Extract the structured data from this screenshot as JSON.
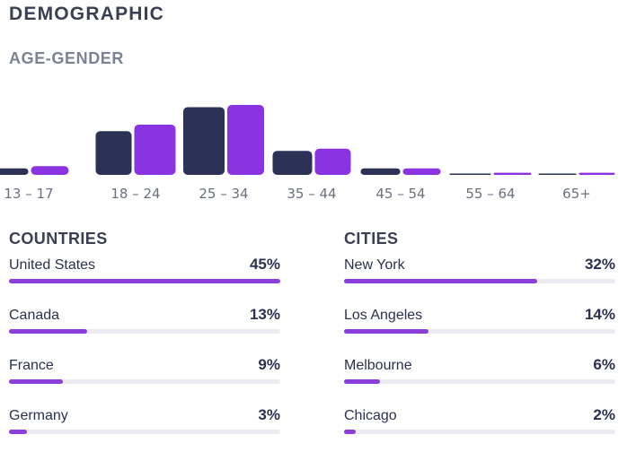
{
  "header": {
    "title": "DEMOGRAPHIC"
  },
  "age_gender": {
    "title": "AGE-GENDER"
  },
  "chart_data": {
    "type": "bar",
    "categories": [
      "13 – 17",
      "18 – 24",
      "25 – 34",
      "35 – 44",
      "45 – 54",
      "55 – 64",
      "65+"
    ],
    "series": [
      {
        "values": [
          3,
          20,
          31,
          11,
          3,
          0.3,
          0.4
        ]
      },
      {
        "values": [
          4,
          23,
          32,
          12,
          3,
          1,
          1
        ]
      }
    ],
    "ylim": [
      0,
      32
    ],
    "grid": false,
    "colors": [
      "#2b3256",
      "#8a33e0"
    ]
  },
  "countries": {
    "title": "COUNTRIES",
    "items": [
      {
        "name": "United States",
        "pct": "45%",
        "value": 45
      },
      {
        "name": "Canada",
        "pct": "13%",
        "value": 13
      },
      {
        "name": "France",
        "pct": "9%",
        "value": 9
      },
      {
        "name": "Germany",
        "pct": "3%",
        "value": 3
      }
    ]
  },
  "cities": {
    "title": "CITIES",
    "items": [
      {
        "name": "New York",
        "pct": "32%",
        "value": 32
      },
      {
        "name": "Los Angeles",
        "pct": "14%",
        "value": 14
      },
      {
        "name": "Melbourne",
        "pct": "6%",
        "value": 6
      },
      {
        "name": "Chicago",
        "pct": "2%",
        "value": 2
      }
    ]
  },
  "colors": {
    "accent": "#8b3fd8",
    "dark_bar": "#2b3256",
    "track": "#ebebf2"
  }
}
